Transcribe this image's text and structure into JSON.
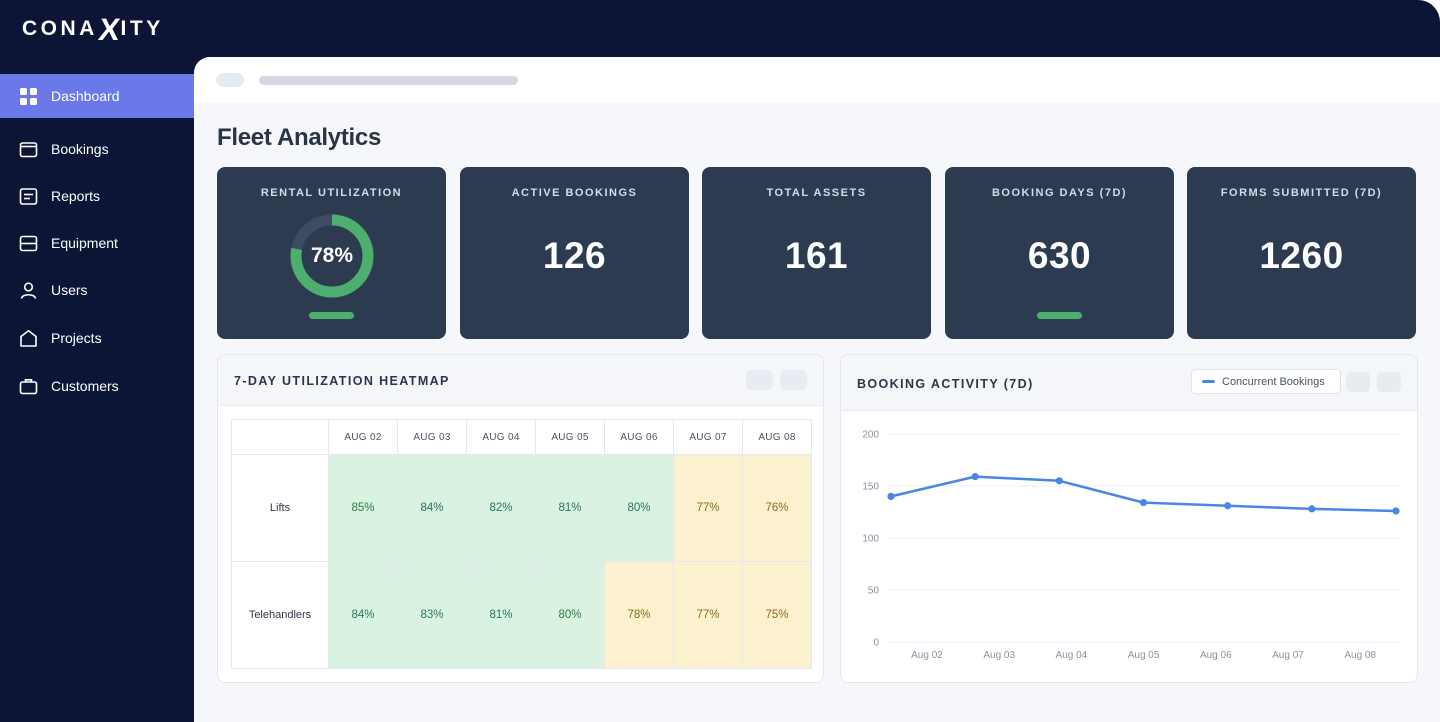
{
  "brand": {
    "logo_pre": "CONA",
    "logo_x": "X",
    "logo_post": "ITY"
  },
  "sidebar": {
    "items": [
      {
        "label": "Dashboard",
        "icon": "grid-icon",
        "active": true
      },
      {
        "label": "Bookings",
        "icon": "calendar-icon"
      },
      {
        "label": "Reports",
        "icon": "report-icon"
      },
      {
        "label": "Equipment",
        "icon": "equipment-icon"
      },
      {
        "label": "Users",
        "icon": "user-icon"
      },
      {
        "label": "Projects",
        "icon": "home-icon"
      },
      {
        "label": "Customers",
        "icon": "briefcase-icon"
      }
    ]
  },
  "page": {
    "title": "Fleet Analytics"
  },
  "kpis": [
    {
      "label": "RENTAL UTILIZATION",
      "value": "78%",
      "percent": 78
    },
    {
      "label": "ACTIVE BOOKINGS",
      "value": "126"
    },
    {
      "label": "TOTAL ASSETS",
      "value": "161"
    },
    {
      "label": "BOOKING DAYS (7D)",
      "value": "630"
    },
    {
      "label": "FORMS SUBMITTED (7D)",
      "value": "1260"
    }
  ],
  "heatmap": {
    "title": "7-DAY UTILIZATION HEATMAP",
    "columns": [
      "AUG 02",
      "AUG 03",
      "AUG 04",
      "AUG 05",
      "AUG 06",
      "AUG 07",
      "AUG 08"
    ],
    "rows": [
      {
        "label": "Lifts",
        "values": [
          "85%",
          "84%",
          "82%",
          "81%",
          "80%",
          "77%",
          "76%"
        ]
      },
      {
        "label": "Telehandlers",
        "values": [
          "84%",
          "83%",
          "81%",
          "80%",
          "78%",
          "77%",
          "75%"
        ]
      }
    ]
  },
  "booking_activity": {
    "title": "BOOKING ACTIVITY (7D)",
    "legend": "Concurrent Bookings"
  },
  "colors": {
    "accent": "#6a78e8",
    "good": "#4caf6e",
    "line": "#4a86e4",
    "card": "#2d3b51",
    "nav": "#0c1535"
  },
  "chart_data": {
    "type": "line",
    "title": "BOOKING ACTIVITY (7D)",
    "categories": [
      "Aug 02",
      "Aug 03",
      "Aug 04",
      "Aug 05",
      "Aug 06",
      "Aug 07",
      "Aug 08"
    ],
    "series": [
      {
        "name": "Concurrent Bookings",
        "values": [
          140,
          159,
          155,
          134,
          131,
          128,
          126
        ]
      }
    ],
    "yticks": [
      0,
      50,
      100,
      150,
      200
    ],
    "ylim": [
      0,
      200
    ],
    "grid": true,
    "legend": "top-right"
  }
}
